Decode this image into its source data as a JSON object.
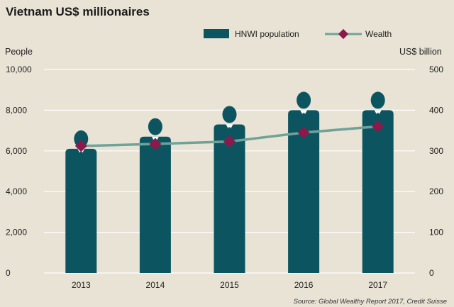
{
  "chart_data": {
    "type": "bar",
    "title": "Vietnam US$ millionaires",
    "categories": [
      "2013",
      "2014",
      "2015",
      "2016",
      "2017"
    ],
    "series": [
      {
        "name": "HNWI population",
        "axis": "left",
        "values": [
          6100,
          6700,
          7300,
          8000,
          8000
        ],
        "color": "#0c5560"
      },
      {
        "name": "Wealth",
        "axis": "right",
        "type": "line",
        "values": [
          312,
          317,
          323,
          345,
          360
        ],
        "color": "#6fa39a",
        "marker_color": "#8b1a4a"
      }
    ],
    "ylabel_left": "People",
    "ylabel_right": "US$ billion",
    "ylim_left": [
      0,
      10000
    ],
    "ylim_right": [
      0,
      500
    ],
    "yticks_left": [
      "0",
      "2,000",
      "4,000",
      "6,000",
      "8,000",
      "10,000"
    ],
    "yticks_right": [
      "0",
      "100",
      "200",
      "300",
      "400",
      "500"
    ],
    "grid": true,
    "legend": "top",
    "source": "Source: Global Wealthy Report 2017, Credit Suisse"
  },
  "colors": {
    "background": "#e9e3d5",
    "grid": "#ffffff",
    "bar": "#0c5560",
    "line": "#6fa39a",
    "marker": "#8b1a4a"
  }
}
